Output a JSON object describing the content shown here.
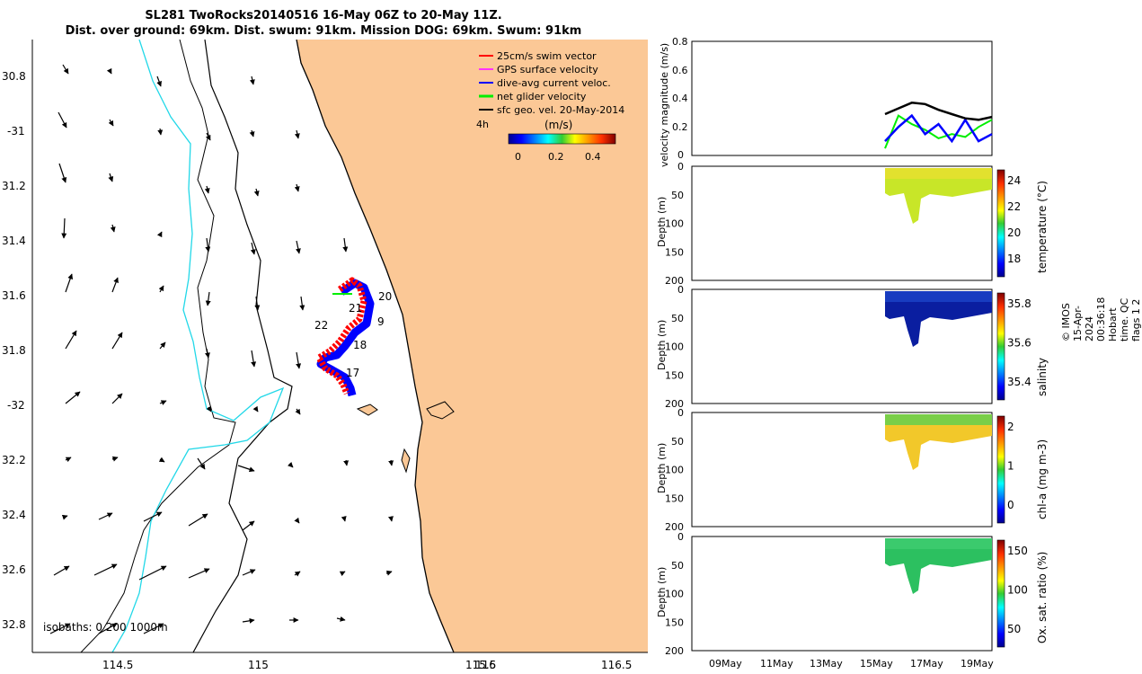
{
  "title": {
    "line1": "SL281 TwoRocks20140516 16-May 06Z to 20-May 11Z.",
    "line2": "Dist. over ground: 69km. Dist. swum: 91km. Mission DOG: 69km. Swum: 91km"
  },
  "map": {
    "lat_ticks": [
      "30.8",
      "-31",
      "31.2",
      "31.4",
      "31.6",
      "31.8",
      "-32",
      "32.2",
      "32.4",
      "32.6",
      "32.8"
    ],
    "lon_ticks": [
      "114.5",
      "115",
      "115.5",
      "116",
      "116.5"
    ],
    "legend": {
      "items": [
        {
          "label": "25cm/s swim vector",
          "color": "#ff0000"
        },
        {
          "label": "GPS surface velocity",
          "color": "#ff33ff"
        },
        {
          "label": "dive-avg current veloc.",
          "color": "#0000ff"
        },
        {
          "label": "net glider velocity",
          "color": "#00ee00"
        },
        {
          "label": "sfc geo. vel. 20-May-2014",
          "color": "#000000"
        }
      ],
      "scale_tag": "4h",
      "colorbar_label": "(m/s)",
      "colorbar_ticks": [
        "0",
        "0.2",
        "0.4"
      ]
    },
    "day_labels": [
      "20",
      "21",
      "9",
      "22",
      "18",
      "17"
    ],
    "isobaths_label": "isobaths: 0   200  1000m",
    "colors": {
      "land": "#fbc896",
      "coast_200m": "#000000",
      "isobath_1000m": "#22d8e8"
    }
  },
  "panels": {
    "velocity": {
      "ylabel": "velocity magnitude (m/s)",
      "yticks": [
        "0",
        "0.2",
        "0.4",
        "0.6",
        "0.8"
      ]
    },
    "depth_ylabel": "Depth (m)",
    "depth_ticks": [
      "0",
      "50",
      "100",
      "150",
      "200"
    ],
    "temperature": {
      "cbar_label": "temperature (°C)",
      "cbar_ticks": [
        "24",
        "22",
        "20",
        "18"
      ]
    },
    "salinity": {
      "cbar_label": "salinity",
      "cbar_ticks": [
        "35.8",
        "35.6",
        "35.4"
      ]
    },
    "chla": {
      "cbar_label": "chl-a (mg m-3)",
      "cbar_ticks": [
        "2",
        "1",
        "0"
      ]
    },
    "oxygen": {
      "cbar_label": "Ox. sat. ratio (%)",
      "cbar_ticks": [
        "150",
        "100",
        "50"
      ]
    },
    "xticks": [
      "09May",
      "11May",
      "13May",
      "15May",
      "17May",
      "19May"
    ]
  },
  "credit": "© IMOS 15-Apr-2024 00:36:18 Hobart time. QC flags 1  2",
  "chart_data": [
    {
      "type": "line",
      "title": "",
      "ylabel": "velocity magnitude (m/s)",
      "ylim": [
        0,
        0.8
      ],
      "x": [
        "16-May",
        "16.5",
        "17-May",
        "17.5",
        "18-May",
        "18.5",
        "19-May",
        "19.5",
        "20-May"
      ],
      "series": [
        {
          "name": "sfc geo. vel. 20-May-2014",
          "values": [
            0.29,
            0.33,
            0.37,
            0.36,
            0.32,
            0.29,
            0.26,
            0.25,
            0.27
          ]
        },
        {
          "name": "dive-avg current veloc.",
          "values": [
            0.1,
            0.2,
            0.28,
            0.15,
            0.22,
            0.1,
            0.25,
            0.1,
            0.15
          ]
        },
        {
          "name": "net glider velocity",
          "values": [
            0.05,
            0.28,
            0.22,
            0.18,
            0.12,
            0.15,
            0.13,
            0.2,
            0.25
          ]
        }
      ]
    },
    {
      "type": "heatmap",
      "ylabel": "Depth (m)",
      "ylim": [
        200,
        0
      ],
      "colorbar": "temperature (°C)",
      "clim": [
        17,
        25
      ]
    },
    {
      "type": "heatmap",
      "ylabel": "Depth (m)",
      "ylim": [
        200,
        0
      ],
      "colorbar": "salinity",
      "clim": [
        35.3,
        36.0
      ]
    },
    {
      "type": "heatmap",
      "ylabel": "Depth (m)",
      "ylim": [
        200,
        0
      ],
      "colorbar": "chl-a (mg m-3)",
      "clim": [
        0,
        2
      ]
    },
    {
      "type": "heatmap",
      "ylabel": "Depth (m)",
      "ylim": [
        200,
        0
      ],
      "colorbar": "Ox. sat. ratio (%)",
      "clim": [
        20,
        170
      ]
    }
  ]
}
